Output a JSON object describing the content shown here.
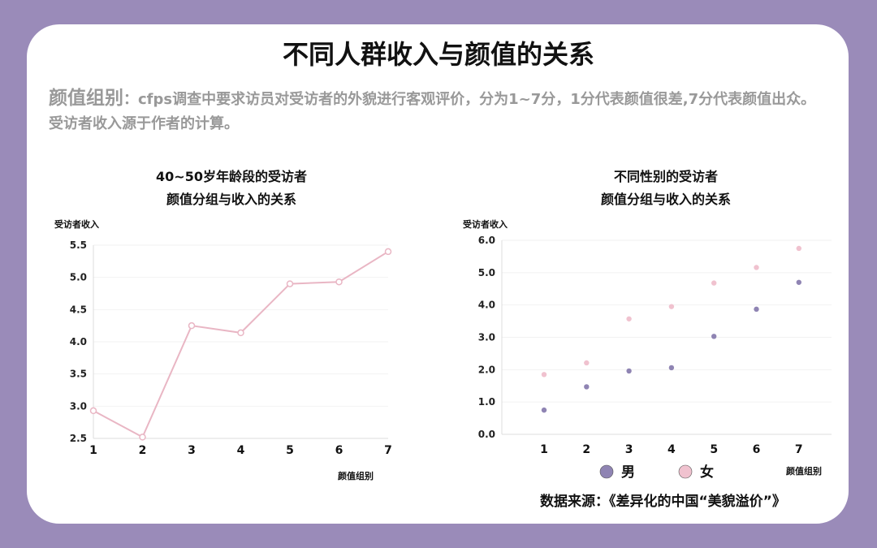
{
  "title": "不同人群收入与颜值的关系",
  "description": {
    "term": "颜值组别",
    "text": "：cfps调查中要求访员对受访者的外貌进行客观评价，分为1~7分，1分代表颜值很差,7分代表颜值出众。",
    "note": "受访者收入源于作者的计算。"
  },
  "source": "数据来源：《差异化的中国“美貌溢价”》",
  "colors": {
    "background": "#9a8bb9",
    "line": "#e9b6c4",
    "male": "#8f84b3",
    "female": "#f0c2cf"
  },
  "chart_data": [
    {
      "type": "line",
      "title_lines": [
        "40~50岁年龄段的受访者",
        "颜值分组与收入的关系"
      ],
      "xlabel": "颜值组别",
      "ylabel": "受访者收入",
      "categories": [
        "1",
        "2",
        "3",
        "4",
        "5",
        "6",
        "7"
      ],
      "values": [
        2.93,
        2.52,
        4.25,
        4.14,
        4.9,
        4.93,
        5.4
      ],
      "ylim": [
        2.5,
        5.5
      ],
      "yticks": [
        "2.5",
        "3.0",
        "3.5",
        "4.0",
        "4.5",
        "5.0",
        "5.5"
      ],
      "grid": true
    },
    {
      "type": "scatter",
      "title_lines": [
        "不同性别的受访者",
        "颜值分组与收入的关系"
      ],
      "xlabel": "颜值组别",
      "ylabel": "受访者收入",
      "categories": [
        "1",
        "2",
        "3",
        "4",
        "5",
        "6",
        "7"
      ],
      "ylim": [
        0,
        6
      ],
      "yticks": [
        "0.0",
        "1.0",
        "2.0",
        "3.0",
        "4.0",
        "5.0",
        "6.0"
      ],
      "grid": true,
      "legend": "bottom",
      "series": [
        {
          "name": "男",
          "values": [
            0.75,
            1.47,
            1.96,
            2.06,
            3.03,
            3.87,
            4.7
          ]
        },
        {
          "name": "女",
          "values": [
            1.85,
            2.21,
            3.57,
            3.95,
            4.68,
            5.16,
            5.75
          ]
        }
      ]
    }
  ]
}
